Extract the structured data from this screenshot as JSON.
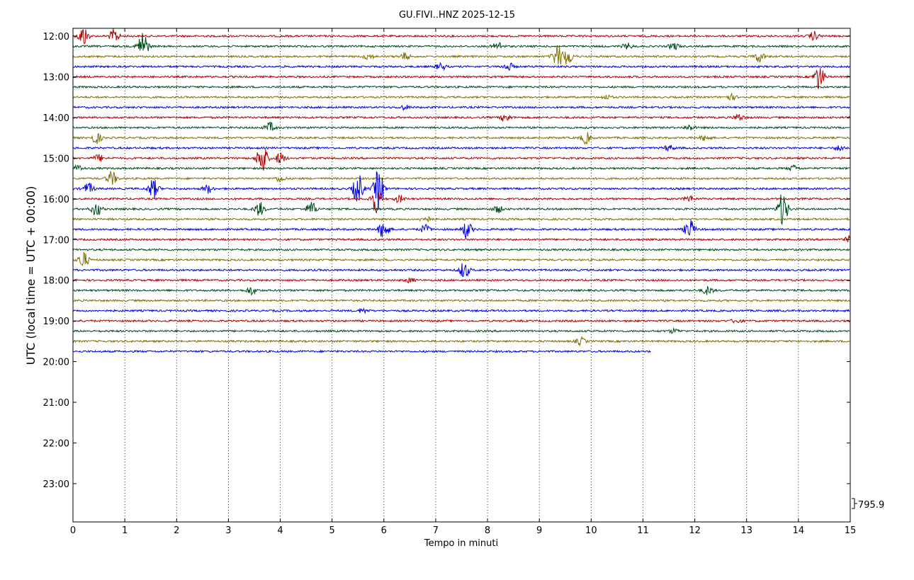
{
  "chart_data": {
    "type": "line",
    "title": "GU.FIVI..HNZ 2025-12-15",
    "xlabel": "Tempo in minuti",
    "ylabel": "UTC (local time = UTC + 00:00)",
    "xlim": [
      0,
      15
    ],
    "x_ticks": [
      "0",
      "1",
      "2",
      "3",
      "4",
      "5",
      "6",
      "7",
      "8",
      "9",
      "10",
      "11",
      "12",
      "13",
      "14",
      "15"
    ],
    "y_ticks": [
      "12:00",
      "13:00",
      "14:00",
      "15:00",
      "16:00",
      "17:00",
      "18:00",
      "19:00",
      "20:00",
      "21:00",
      "22:00",
      "23:00"
    ],
    "grid": "vertical dotted",
    "scale_label": "795.9",
    "colors": [
      "#b30000",
      "#004d1a",
      "#807000",
      "#0000e6"
    ],
    "traces": [
      {
        "start": "12:00",
        "end_minute": 15,
        "bursts": [
          {
            "t": 0.2,
            "a": 14
          },
          {
            "t": 0.8,
            "a": 10
          },
          {
            "t": 14.3,
            "a": 6
          }
        ]
      },
      {
        "start": "12:15",
        "end_minute": 15,
        "bursts": [
          {
            "t": 1.35,
            "a": 22
          },
          {
            "t": 8.2,
            "a": 6
          },
          {
            "t": 10.7,
            "a": 4
          },
          {
            "t": 11.6,
            "a": 5
          }
        ]
      },
      {
        "start": "12:30",
        "end_minute": 15,
        "bursts": [
          {
            "t": 5.7,
            "a": 4
          },
          {
            "t": 6.4,
            "a": 5
          },
          {
            "t": 9.35,
            "a": 16
          },
          {
            "t": 9.55,
            "a": 12
          },
          {
            "t": 13.25,
            "a": 8
          }
        ]
      },
      {
        "start": "12:45",
        "end_minute": 15,
        "bursts": [
          {
            "t": 7.1,
            "a": 5
          },
          {
            "t": 8.4,
            "a": 6
          }
        ]
      },
      {
        "start": "13:00",
        "end_minute": 15,
        "bursts": [
          {
            "t": 14.4,
            "a": 18
          }
        ]
      },
      {
        "start": "13:15",
        "end_minute": 15,
        "bursts": []
      },
      {
        "start": "13:30",
        "end_minute": 15,
        "bursts": [
          {
            "t": 10.3,
            "a": 3
          },
          {
            "t": 12.7,
            "a": 4
          }
        ]
      },
      {
        "start": "13:45",
        "end_minute": 15,
        "bursts": [
          {
            "t": 6.4,
            "a": 3
          }
        ]
      },
      {
        "start": "14:00",
        "end_minute": 15,
        "bursts": [
          {
            "t": 8.35,
            "a": 6
          },
          {
            "t": 12.85,
            "a": 5
          }
        ]
      },
      {
        "start": "14:15",
        "end_minute": 15,
        "bursts": [
          {
            "t": 3.8,
            "a": 7
          },
          {
            "t": 11.9,
            "a": 4
          }
        ]
      },
      {
        "start": "14:30",
        "end_minute": 15,
        "bursts": [
          {
            "t": 0.45,
            "a": 8
          },
          {
            "t": 9.9,
            "a": 8
          },
          {
            "t": 12.2,
            "a": 4
          }
        ]
      },
      {
        "start": "14:45",
        "end_minute": 15,
        "bursts": [
          {
            "t": 11.5,
            "a": 4
          },
          {
            "t": 14.8,
            "a": 4
          }
        ]
      },
      {
        "start": "15:00",
        "end_minute": 15,
        "bursts": [
          {
            "t": 3.65,
            "a": 24
          },
          {
            "t": 4.0,
            "a": 8
          },
          {
            "t": 0.5,
            "a": 5
          }
        ]
      },
      {
        "start": "15:15",
        "end_minute": 15,
        "bursts": [
          {
            "t": 0.1,
            "a": 4
          },
          {
            "t": 13.9,
            "a": 4
          }
        ]
      },
      {
        "start": "15:30",
        "end_minute": 15,
        "bursts": [
          {
            "t": 0.75,
            "a": 10
          },
          {
            "t": 4.0,
            "a": 4
          }
        ]
      },
      {
        "start": "15:45",
        "end_minute": 15,
        "bursts": [
          {
            "t": 0.3,
            "a": 8
          },
          {
            "t": 1.55,
            "a": 14
          },
          {
            "t": 2.6,
            "a": 6
          },
          {
            "t": 5.5,
            "a": 22
          },
          {
            "t": 5.9,
            "a": 28
          }
        ]
      },
      {
        "start": "16:00",
        "end_minute": 15,
        "bursts": [
          {
            "t": 5.85,
            "a": 20
          },
          {
            "t": 6.3,
            "a": 5
          },
          {
            "t": 11.9,
            "a": 4
          }
        ]
      },
      {
        "start": "16:15",
        "end_minute": 15,
        "bursts": [
          {
            "t": 0.45,
            "a": 10
          },
          {
            "t": 3.6,
            "a": 10
          },
          {
            "t": 4.6,
            "a": 10
          },
          {
            "t": 8.2,
            "a": 5
          },
          {
            "t": 13.7,
            "a": 24
          }
        ]
      },
      {
        "start": "16:30",
        "end_minute": 15,
        "bursts": [
          {
            "t": 6.8,
            "a": 5
          }
        ]
      },
      {
        "start": "16:45",
        "end_minute": 15,
        "bursts": [
          {
            "t": 6.0,
            "a": 14
          },
          {
            "t": 6.8,
            "a": 6
          },
          {
            "t": 7.6,
            "a": 12
          },
          {
            "t": 11.9,
            "a": 14
          }
        ]
      },
      {
        "start": "17:00",
        "end_minute": 15,
        "bursts": [
          {
            "t": 15.0,
            "a": 5
          }
        ]
      },
      {
        "start": "17:15",
        "end_minute": 15,
        "bursts": []
      },
      {
        "start": "17:30",
        "end_minute": 15,
        "bursts": [
          {
            "t": 0.2,
            "a": 12
          }
        ]
      },
      {
        "start": "17:45",
        "end_minute": 15,
        "bursts": [
          {
            "t": 7.55,
            "a": 12
          }
        ]
      },
      {
        "start": "18:00",
        "end_minute": 15,
        "bursts": [
          {
            "t": 6.5,
            "a": 3
          }
        ]
      },
      {
        "start": "18:15",
        "end_minute": 15,
        "bursts": [
          {
            "t": 3.45,
            "a": 6
          },
          {
            "t": 12.25,
            "a": 6
          }
        ]
      },
      {
        "start": "18:30",
        "end_minute": 15,
        "bursts": []
      },
      {
        "start": "18:45",
        "end_minute": 15,
        "bursts": [
          {
            "t": 5.6,
            "a": 3
          }
        ]
      },
      {
        "start": "19:00",
        "end_minute": 15,
        "bursts": [
          {
            "t": 12.8,
            "a": 3
          }
        ]
      },
      {
        "start": "19:15",
        "end_minute": 15,
        "bursts": [
          {
            "t": 11.6,
            "a": 3
          }
        ]
      },
      {
        "start": "19:30",
        "end_minute": 15,
        "bursts": [
          {
            "t": 9.8,
            "a": 5
          }
        ]
      },
      {
        "start": "19:45",
        "end_minute": 11.15,
        "bursts": []
      }
    ]
  }
}
